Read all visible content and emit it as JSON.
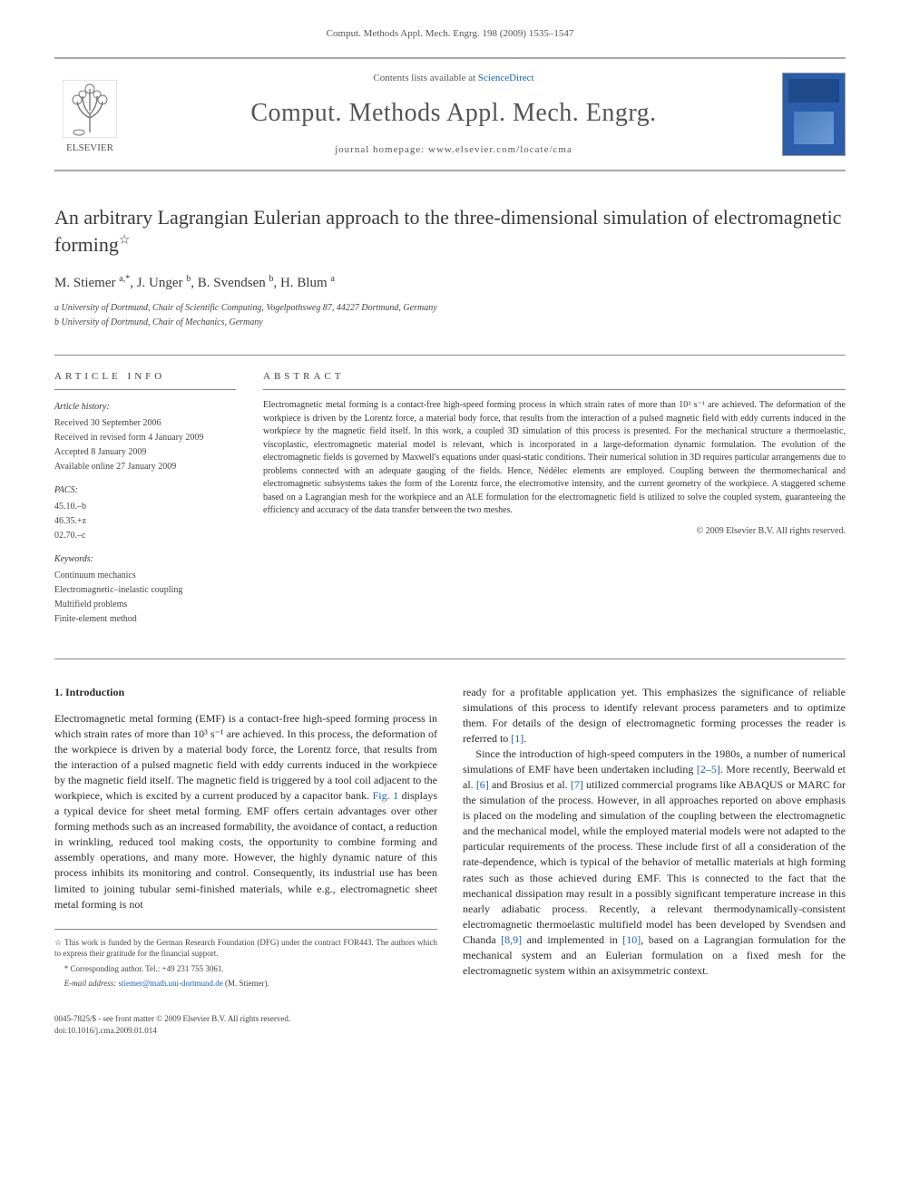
{
  "header": {
    "journal_ref": "Comput. Methods Appl. Mech. Engrg. 198 (2009) 1535–1547",
    "publisher_name": "ELSEVIER",
    "contents_prefix": "Contents lists available at ",
    "contents_link": "ScienceDirect",
    "journal_title": "Comput. Methods Appl. Mech. Engrg.",
    "homepage_label": "journal homepage: www.elsevier.com/locate/cma"
  },
  "article": {
    "title": "An arbitrary Lagrangian Eulerian approach to the three-dimensional simulation of electromagnetic forming",
    "star": "☆",
    "authors_html": "M. Stiemer <sup>a,*</sup>, J. Unger <sup>b</sup>, B. Svendsen <sup>b</sup>, H. Blum <sup>a</sup>",
    "affiliations": {
      "a": "a University of Dortmund, Chair of Scientific Computing, Vogelpothsweg 87, 44227 Dortmund, Germany",
      "b": "b University of Dortmund, Chair of Mechanics, Germany"
    }
  },
  "info": {
    "heading": "ARTICLE INFO",
    "history_head": "Article history:",
    "history": [
      "Received 30 September 2006",
      "Received in revised form 4 January 2009",
      "Accepted 8 January 2009",
      "Available online 27 January 2009"
    ],
    "pacs_head": "PACS:",
    "pacs": [
      "45.10.–b",
      "46.35.+z",
      "02.70.–c"
    ],
    "keywords_head": "Keywords:",
    "keywords": [
      "Continuum mechanics",
      "Electromagnetic–inelastic coupling",
      "Multifield problems",
      "Finite-element method"
    ]
  },
  "abstract": {
    "heading": "ABSTRACT",
    "text": "Electromagnetic metal forming is a contact-free high-speed forming process in which strain rates of more than 10³ s⁻¹ are achieved. The deformation of the workpiece is driven by the Lorentz force, a material body force, that results from the interaction of a pulsed magnetic field with eddy currents induced in the workpiece by the magnetic field itself. In this work, a coupled 3D simulation of this process is presented. For the mechanical structure a thermoelastic, viscoplastic, electromagnetic material model is relevant, which is incorporated in a large-deformation dynamic formulation. The evolution of the electromagnetic fields is governed by Maxwell's equations under quasi-static conditions. Their numerical solution in 3D requires particular arrangements due to problems connected with an adequate gauging of the fields. Hence, Nédélec elements are employed. Coupling between the thermomechanical and electromagnetic subsystems takes the form of the Lorentz force, the electromotive intensity, and the current geometry of the workpiece. A staggered scheme based on a Lagrangian mesh for the workpiece and an ALE formulation for the electromagnetic field is utilized to solve the coupled system, guaranteeing the efficiency and accuracy of the data transfer between the two meshes.",
    "copyright": "© 2009 Elsevier B.V. All rights reserved."
  },
  "body": {
    "section_heading": "1. Introduction",
    "col1_p1": "Electromagnetic metal forming (EMF) is a contact-free high-speed forming process in which strain rates of more than 10³ s⁻¹ are achieved. In this process, the deformation of the workpiece is driven by a material body force, the Lorentz force, that results from the interaction of a pulsed magnetic field with eddy currents induced in the workpiece by the magnetic field itself. The magnetic field is triggered by a tool coil adjacent to the workpiece, which is excited by a current produced by a capacitor bank. ",
    "col1_fig": "Fig. 1",
    "col1_p1b": " displays a typical device for sheet metal forming. EMF offers certain advantages over other forming methods such as an increased formability, the avoidance of contact, a reduction in wrinkling, reduced tool making costs, the opportunity to combine forming and assembly operations, and many more. However, the highly dynamic nature of this process inhibits its monitoring and control. Consequently, its industrial use has been limited to joining tubular semi-finished materials, while e.g., electromagnetic sheet metal forming is not",
    "col2_p1a": "ready for a profitable application yet. This emphasizes the significance of reliable simulations of this process to identify relevant process parameters and to optimize them. For details of the design of electromagnetic forming processes the reader is referred to ",
    "col2_ref1": "[1]",
    "col2_p1b": ".",
    "col2_p2a": "Since the introduction of high-speed computers in the 1980s, a number of numerical simulations of EMF have been undertaken including ",
    "col2_ref2": "[2–5]",
    "col2_p2b": ". More recently, Beerwald et al. ",
    "col2_ref3": "[6]",
    "col2_p2c": " and Brosius et al. ",
    "col2_ref4": "[7]",
    "col2_p2d": " utilized commercial programs like ABAQUS or MARC for the simulation of the process. However, in all approaches reported on above emphasis is placed on the modeling and simulation of the coupling between the electromagnetic and the mechanical model, while the employed material models were not adapted to the particular requirements of the process. These include first of all a consideration of the rate-dependence, which is typical of the behavior of metallic materials at high forming rates such as those achieved during EMF. This is connected to the fact that the mechanical dissipation may result in a possibly significant temperature increase in this nearly adiabatic process. Recently, a relevant thermodynamically-consistent electromagnetic thermoelastic multifield model has been developed by Svendsen and Chanda ",
    "col2_ref5": "[8,9]",
    "col2_p2e": " and implemented in ",
    "col2_ref6": "[10]",
    "col2_p2f": ", based on a Lagrangian formulation for the mechanical system and an Eulerian formulation on a fixed mesh for the electromagnetic system within an axisymmetric context."
  },
  "footnotes": {
    "funding": "☆ This work is funded by the German Research Foundation (DFG) under the contract FOR443. The authors which to express their gratitude for the financial support.",
    "corresponding": "* Corresponding author. Tel.: +49 231 755 3061.",
    "email_label": "E-mail address:",
    "email": "stiemer@math.uni-dortmund.de",
    "email_suffix": " (M. Stiemer)."
  },
  "bottom": {
    "line1": "0045-7825/$ - see front matter © 2009 Elsevier B.V. All rights reserved.",
    "line2": "doi:10.1016/j.cma.2009.01.014"
  },
  "colors": {
    "link": "#1a62b3",
    "text": "#2a2a2a",
    "muted": "#555",
    "rule": "#888"
  }
}
